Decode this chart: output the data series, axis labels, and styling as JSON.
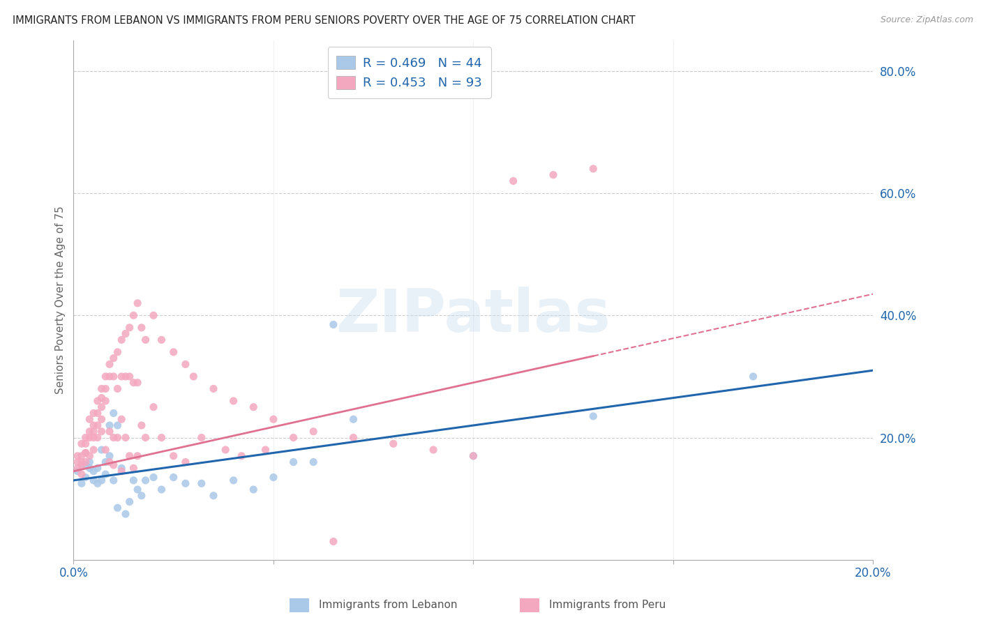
{
  "title": "IMMIGRANTS FROM LEBANON VS IMMIGRANTS FROM PERU SENIORS POVERTY OVER THE AGE OF 75 CORRELATION CHART",
  "source": "Source: ZipAtlas.com",
  "ylabel": "Seniors Poverty Over the Age of 75",
  "xlim": [
    0.0,
    0.2
  ],
  "ylim": [
    0.0,
    0.85
  ],
  "right_yticks": [
    0.2,
    0.4,
    0.6,
    0.8
  ],
  "right_yticklabels": [
    "20.0%",
    "40.0%",
    "60.0%",
    "80.0%"
  ],
  "legend_labels": [
    "Immigrants from Lebanon",
    "Immigrants from Peru"
  ],
  "lebanon_color": "#aac8e8",
  "peru_color": "#f4a8c0",
  "lebanon_line_color": "#2166ac",
  "peru_line_color": "#e07090",
  "R_lebanon": 0.469,
  "N_lebanon": 44,
  "R_peru": 0.453,
  "N_peru": 93,
  "watermark": "ZIPatlas",
  "background_color": "#ffffff",
  "grid_color": "#cccccc",
  "text_color": "#2166ac",
  "lebanon_scatter_x": [
    0.001,
    0.002,
    0.002,
    0.003,
    0.003,
    0.004,
    0.004,
    0.005,
    0.005,
    0.006,
    0.006,
    0.007,
    0.007,
    0.008,
    0.008,
    0.009,
    0.009,
    0.01,
    0.01,
    0.011,
    0.011,
    0.012,
    0.013,
    0.014,
    0.015,
    0.016,
    0.017,
    0.018,
    0.02,
    0.022,
    0.025,
    0.028,
    0.032,
    0.035,
    0.04,
    0.045,
    0.05,
    0.055,
    0.06,
    0.065,
    0.07,
    0.1,
    0.13,
    0.17
  ],
  "lebanon_scatter_y": [
    0.145,
    0.125,
    0.155,
    0.135,
    0.155,
    0.15,
    0.16,
    0.145,
    0.13,
    0.125,
    0.15,
    0.18,
    0.13,
    0.16,
    0.14,
    0.22,
    0.17,
    0.24,
    0.13,
    0.085,
    0.22,
    0.15,
    0.075,
    0.095,
    0.13,
    0.115,
    0.105,
    0.13,
    0.135,
    0.115,
    0.135,
    0.125,
    0.125,
    0.105,
    0.13,
    0.115,
    0.135,
    0.16,
    0.16,
    0.385,
    0.23,
    0.17,
    0.235,
    0.3
  ],
  "peru_scatter_x": [
    0.001,
    0.001,
    0.001,
    0.002,
    0.002,
    0.002,
    0.002,
    0.002,
    0.003,
    0.003,
    0.003,
    0.003,
    0.003,
    0.004,
    0.004,
    0.004,
    0.004,
    0.005,
    0.005,
    0.005,
    0.005,
    0.005,
    0.006,
    0.006,
    0.006,
    0.006,
    0.007,
    0.007,
    0.007,
    0.007,
    0.007,
    0.008,
    0.008,
    0.008,
    0.008,
    0.009,
    0.009,
    0.009,
    0.009,
    0.01,
    0.01,
    0.01,
    0.01,
    0.011,
    0.011,
    0.011,
    0.012,
    0.012,
    0.012,
    0.012,
    0.013,
    0.013,
    0.013,
    0.014,
    0.014,
    0.014,
    0.015,
    0.015,
    0.015,
    0.016,
    0.016,
    0.016,
    0.017,
    0.017,
    0.018,
    0.018,
    0.02,
    0.02,
    0.022,
    0.022,
    0.025,
    0.025,
    0.028,
    0.028,
    0.03,
    0.032,
    0.035,
    0.038,
    0.04,
    0.042,
    0.045,
    0.048,
    0.05,
    0.055,
    0.06,
    0.065,
    0.07,
    0.08,
    0.09,
    0.1,
    0.11,
    0.12,
    0.13
  ],
  "peru_scatter_y": [
    0.15,
    0.16,
    0.17,
    0.14,
    0.155,
    0.17,
    0.19,
    0.16,
    0.175,
    0.19,
    0.2,
    0.16,
    0.175,
    0.21,
    0.23,
    0.2,
    0.17,
    0.22,
    0.24,
    0.21,
    0.2,
    0.18,
    0.26,
    0.24,
    0.22,
    0.2,
    0.28,
    0.265,
    0.25,
    0.23,
    0.21,
    0.3,
    0.28,
    0.26,
    0.18,
    0.32,
    0.3,
    0.21,
    0.16,
    0.33,
    0.3,
    0.2,
    0.155,
    0.34,
    0.28,
    0.2,
    0.36,
    0.3,
    0.23,
    0.145,
    0.37,
    0.3,
    0.2,
    0.38,
    0.3,
    0.17,
    0.4,
    0.29,
    0.15,
    0.42,
    0.29,
    0.17,
    0.38,
    0.22,
    0.36,
    0.2,
    0.4,
    0.25,
    0.36,
    0.2,
    0.34,
    0.17,
    0.32,
    0.16,
    0.3,
    0.2,
    0.28,
    0.18,
    0.26,
    0.17,
    0.25,
    0.18,
    0.23,
    0.2,
    0.21,
    0.03,
    0.2,
    0.19,
    0.18,
    0.17,
    0.62,
    0.63,
    0.64
  ],
  "leb_line_x0": 0.0,
  "leb_line_y0": 0.13,
  "leb_line_x1": 0.2,
  "leb_line_y1": 0.31,
  "peru_line_x0": 0.0,
  "peru_line_y0": 0.145,
  "peru_line_x1": 0.2,
  "peru_line_y1": 0.435
}
